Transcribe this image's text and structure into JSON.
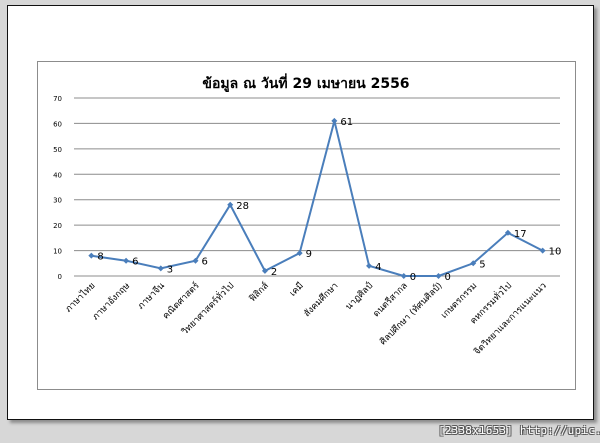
{
  "chart_data": {
    "type": "line",
    "title": "ข้อมูล ณ วันที่ 29 เมษายน 2556",
    "categories": [
      "ภาษาไทย",
      "ภาษาอังกฤษ",
      "ภาษาจีน",
      "คณิตศาสตร์",
      "วิทยาศาสตร์ทั่วไป",
      "ฟิสิกส์",
      "เคมี",
      "สังคมศึกษา",
      "นาฏศิลป์",
      "ดนตรีสากล",
      "ศิลปศึกษา (ทัศนศิลป์)",
      "เกษตรกรรม",
      "คหกรรมทั่วไป",
      "จิตวิทยาและการแนะแนว"
    ],
    "series": [
      {
        "values": [
          8,
          6,
          3,
          6,
          28,
          2,
          9,
          61,
          4,
          0,
          0,
          5,
          17,
          10
        ]
      }
    ],
    "ylim": [
      0,
      70
    ],
    "yticks": [
      0,
      10,
      20,
      30,
      40,
      50,
      60,
      70
    ],
    "grid": true,
    "legend": "none",
    "line_color": "#4a7ebb",
    "grid_color": "#8c8c8c"
  },
  "watermark": "[2338x1653] http://upic.me/"
}
